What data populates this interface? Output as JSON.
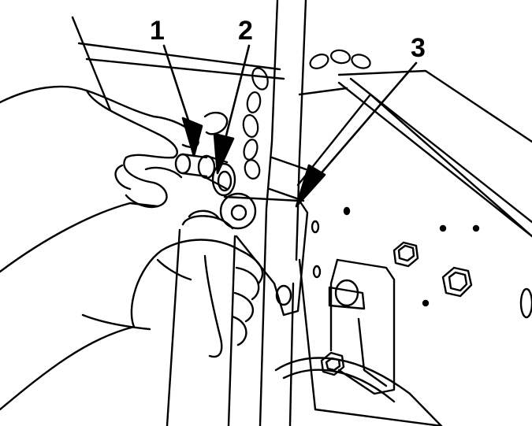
{
  "figure": {
    "callouts": [
      {
        "number": "1"
      },
      {
        "number": "2"
      },
      {
        "number": "3"
      }
    ]
  },
  "colors": {
    "ink": "#000000",
    "paper": "#ffffff"
  },
  "icons": [
    "chain-icon",
    "hex-bolt-icon",
    "pointer-arrow-icon"
  ]
}
